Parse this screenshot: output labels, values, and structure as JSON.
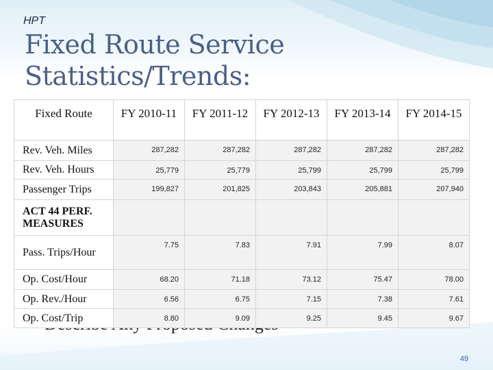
{
  "header": {
    "tag": "HPT"
  },
  "slide": {
    "title_line1": "Fixed Route Service",
    "title_line2": "Statistics/Trends:",
    "bullet": "Describe Any Proposed Changes",
    "page_number": "49"
  },
  "table": {
    "columns": [
      "Fixed Route",
      "FY 2010-11",
      "FY 2011-12",
      "FY 2012-13",
      "FY 2013-14",
      "FY 2014-15"
    ],
    "rows": [
      {
        "label": "Rev. Veh. Miles",
        "values": [
          "287,282",
          "287,282",
          "287,282",
          "287,282",
          "287,282"
        ]
      },
      {
        "label": "Rev. Veh. Hours",
        "values": [
          "25,779",
          "25,779",
          "25,799",
          "25,799",
          "25,799"
        ]
      },
      {
        "label": "Passenger Trips",
        "values": [
          "199,827",
          "201,825",
          "203,843",
          "205,881",
          "207,940"
        ]
      },
      {
        "label": "ACT 44 PERF. MEASURES",
        "values": [
          "",
          "",
          "",
          "",
          ""
        ]
      },
      {
        "label": "Pass. Trips/Hour",
        "values": [
          "7.75",
          "7.83",
          "7.91",
          "7.99",
          "8.07"
        ]
      },
      {
        "label": "Op. Cost/Hour",
        "values": [
          "68.20",
          "71.18",
          "73.12",
          "75.47",
          "78.00"
        ]
      },
      {
        "label": "Op. Rev./Hour",
        "values": [
          "6.56",
          "6.75",
          "7.15",
          "7.38",
          "7.61"
        ]
      },
      {
        "label": "Op. Cost/Trip",
        "values": [
          "8.80",
          "9.09",
          "9.25",
          "9.45",
          "9.67"
        ]
      }
    ]
  },
  "colors": {
    "title": "#4b5f87",
    "bullet": "#4bacc6",
    "cell_fill": "#f2f2f2",
    "accent_band": "#dfeff7"
  }
}
